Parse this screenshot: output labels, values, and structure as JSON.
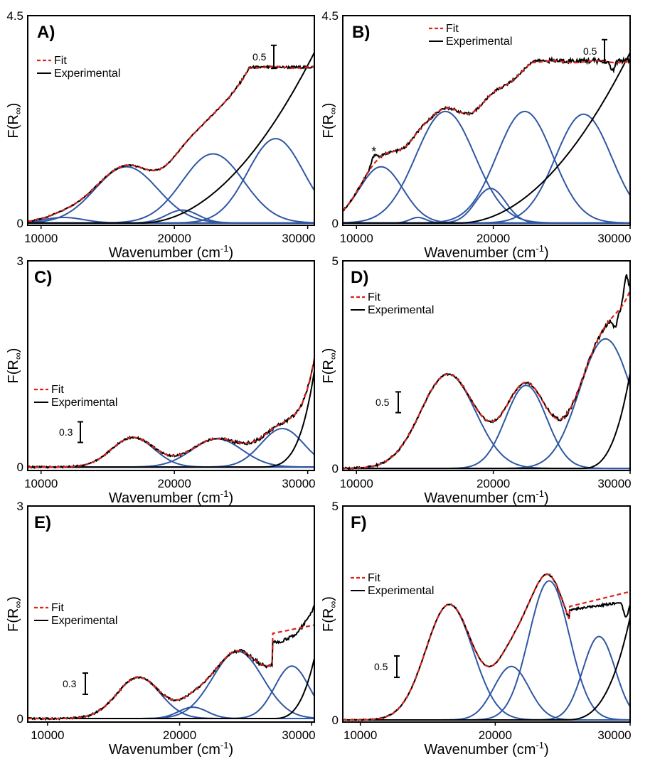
{
  "colors": {
    "fit": "#e0201b",
    "experimental": "#000000",
    "component": "#2f57a3"
  },
  "chart_data": [
    {
      "panel": "A)",
      "type": "line",
      "xlabel": "Wavenumber (cm",
      "xlabel_sup": "-1",
      "xlabel_suffix": ")",
      "ylabel_main": "F(R",
      "ylabel_sub": "∞",
      "ylabel_suffix": ")",
      "xlim": [
        9000,
        30500
      ],
      "ylim": [
        -0.05,
        4.5
      ],
      "xticks": [
        "10000",
        "20000",
        "30000"
      ],
      "ytick_labels": [
        {
          "v": 4.5,
          "t": "4.5"
        },
        {
          "v": 0,
          "t": "0"
        }
      ],
      "legend": {
        "fit": "Fit",
        "experimental": "Experimental"
      },
      "scale_bar": {
        "label": "0.5",
        "size": 0.5
      },
      "baseline": 10000,
      "components": [
        {
          "center": 11700,
          "height": 0.12,
          "width": 1500
        },
        {
          "center": 16400,
          "height": 1.22,
          "width": 2350
        },
        {
          "center": 20600,
          "height": 0.28,
          "width": 1200
        },
        {
          "center": 22900,
          "height": 1.5,
          "width": 2300
        },
        {
          "center": 27600,
          "height": 1.83,
          "width": 2100
        }
      ],
      "edge": {
        "start": 17500,
        "value_at_end": 3.7,
        "end": 30500
      },
      "experimental_dips": [],
      "experimental_spikes": [],
      "fit_flatten": null,
      "star": null
    },
    {
      "panel": "B)",
      "type": "line",
      "xlabel": "Wavenumber (cm",
      "xlabel_sup": "-1",
      "xlabel_suffix": ")",
      "ylabel_main": "F(R",
      "ylabel_sub": "∞",
      "ylabel_suffix": ")",
      "xlim": [
        9000,
        30000
      ],
      "ylim": [
        -0.05,
        4.5
      ],
      "xticks": [
        "10000",
        "20000",
        "30000"
      ],
      "ytick_labels": [
        {
          "v": 4.5,
          "t": "4.5"
        },
        {
          "v": 0,
          "t": "0"
        }
      ],
      "legend": {
        "fit": "Fit",
        "experimental": "Experimental"
      },
      "scale_bar": {
        "label": "0.5",
        "size": 0.5
      },
      "baseline": 9000,
      "components": [
        {
          "center": 11800,
          "height": 1.22,
          "width": 1600
        },
        {
          "center": 14500,
          "height": 0.12,
          "width": 600
        },
        {
          "center": 16500,
          "height": 2.42,
          "width": 2150
        },
        {
          "center": 19800,
          "height": 0.75,
          "width": 1100
        },
        {
          "center": 22300,
          "height": 2.42,
          "width": 2050
        },
        {
          "center": 26600,
          "height": 2.36,
          "width": 2050
        }
      ],
      "edge": {
        "start": 17500,
        "value_at_end": 3.7,
        "end": 30000
      },
      "experimental_dips": [
        {
          "x": 28700,
          "depth": 0.2
        }
      ],
      "experimental_spikes": [],
      "fit_flatten": null,
      "star": {
        "x": 11300,
        "label": "*"
      }
    },
    {
      "panel": "C)",
      "type": "line",
      "xlabel": "Wavenumber (cm",
      "xlabel_sup": "-1",
      "xlabel_suffix": ")",
      "ylabel_main": "F(R",
      "ylabel_sub": "∞",
      "ylabel_suffix": ")",
      "xlim": [
        9000,
        30500
      ],
      "ylim": [
        -0.05,
        3.0
      ],
      "xticks": [
        "10000",
        "20000",
        "30000"
      ],
      "ytick_labels": [
        {
          "v": 3.0,
          "t": "3"
        },
        {
          "v": 0,
          "t": "0"
        }
      ],
      "legend": {
        "fit": "Fit",
        "experimental": "Experimental"
      },
      "scale_bar": {
        "label": "0.3",
        "size": 0.3
      },
      "baseline": 12500,
      "components": [
        {
          "center": 16900,
          "height": 0.43,
          "width": 1600
        },
        {
          "center": 23200,
          "height": 0.41,
          "width": 1900
        },
        {
          "center": 28100,
          "height": 0.56,
          "width": 1600
        }
      ],
      "edge": {
        "start": 26000,
        "value_at_end": 1.4,
        "end": 30500,
        "power": 4
      },
      "experimental_dips": [],
      "experimental_spikes": [],
      "fit_flatten": null,
      "star": null
    },
    {
      "panel": "D)",
      "type": "line",
      "xlabel": "Wavenumber (cm",
      "xlabel_sup": "-1",
      "xlabel_suffix": ")",
      "ylabel_main": "F(R",
      "ylabel_sub": "∞",
      "ylabel_suffix": ")",
      "xlim": [
        9000,
        30000
      ],
      "ylim": [
        -0.05,
        5.0
      ],
      "xticks": [
        "10000",
        "20000",
        "30000"
      ],
      "ytick_labels": [
        {
          "v": 5.0,
          "t": "5"
        },
        {
          "v": 0,
          "t": "0"
        }
      ],
      "legend": {
        "fit": "Fit",
        "experimental": "Experimental"
      },
      "scale_bar": {
        "label": "0.5",
        "size": 0.5
      },
      "baseline": 11000,
      "components": [
        {
          "center": 16700,
          "height": 2.27,
          "width": 2000
        },
        {
          "center": 22400,
          "height": 2.0,
          "width": 1500
        },
        {
          "center": 28200,
          "height": 3.12,
          "width": 1900
        }
      ],
      "edge": {
        "start": 26300,
        "value_at_end": 2.3,
        "end": 30000,
        "power": 3
      },
      "experimental_dips": [
        {
          "x": 28900,
          "depth": 0.3
        }
      ],
      "experimental_spikes": [
        {
          "x": 29700,
          "height": 0.55
        }
      ],
      "fit_flatten": null,
      "star": null
    },
    {
      "panel": "E)",
      "type": "line",
      "xlabel": "Wavenumber (cm",
      "xlabel_sup": "-1",
      "xlabel_suffix": ")",
      "ylabel_main": "F(R",
      "ylabel_sub": "∞",
      "ylabel_suffix": ")",
      "xlim": [
        8500,
        30200
      ],
      "ylim": [
        -0.05,
        3.0
      ],
      "xticks": [
        "10000",
        "20000",
        "30000"
      ],
      "ytick_labels": [
        {
          "v": 3.0,
          "t": "3"
        },
        {
          "v": 0,
          "t": "0"
        }
      ],
      "legend": {
        "fit": "Fit",
        "experimental": "Experimental"
      },
      "scale_bar": {
        "label": "0.3",
        "size": 0.3
      },
      "baseline": 12000,
      "components": [
        {
          "center": 16900,
          "height": 0.58,
          "width": 1650
        },
        {
          "center": 21000,
          "height": 0.16,
          "width": 1100
        },
        {
          "center": 24400,
          "height": 0.95,
          "width": 1900
        },
        {
          "center": 28500,
          "height": 0.74,
          "width": 1300
        }
      ],
      "edge": {
        "start": 27000,
        "value_at_end": 0.85,
        "end": 30200,
        "power": 3
      },
      "experimental_dips": [],
      "experimental_spikes": [],
      "fit_flatten": {
        "start": 27000,
        "value": 1.2,
        "end_value": 1.32
      },
      "star": null
    },
    {
      "panel": "F)",
      "type": "line",
      "xlabel": "Wavenumber (cm",
      "xlabel_sup": "-1",
      "xlabel_suffix": ")",
      "ylabel_main": "F(R",
      "ylabel_sub": "∞",
      "ylabel_suffix": ")",
      "xlim": [
        8700,
        30000
      ],
      "ylim": [
        -0.05,
        5.0
      ],
      "xticks": [
        "10000",
        "20000",
        "30000"
      ],
      "ytick_labels": [
        {
          "v": 5.0,
          "t": "5"
        },
        {
          "v": 0,
          "t": "0"
        }
      ],
      "legend": {
        "fit": "Fit",
        "experimental": "Experimental"
      },
      "scale_bar": {
        "label": "0.5",
        "size": 0.5
      },
      "baseline": 9500,
      "components": [
        {
          "center": 16600,
          "height": 2.7,
          "width": 1750
        },
        {
          "center": 21200,
          "height": 1.25,
          "width": 1300
        },
        {
          "center": 24000,
          "height": 3.25,
          "width": 1500
        },
        {
          "center": 27700,
          "height": 1.95,
          "width": 1200
        }
      ],
      "edge": {
        "start": 25000,
        "value_at_end": 2.4,
        "end": 30000,
        "power": 3
      },
      "experimental_dips": [
        {
          "x": 29700,
          "depth": 0.35
        }
      ],
      "experimental_spikes": [],
      "fit_flatten": {
        "start": 25500,
        "value": 2.65,
        "end_value": 3.0
      },
      "star": null
    }
  ]
}
